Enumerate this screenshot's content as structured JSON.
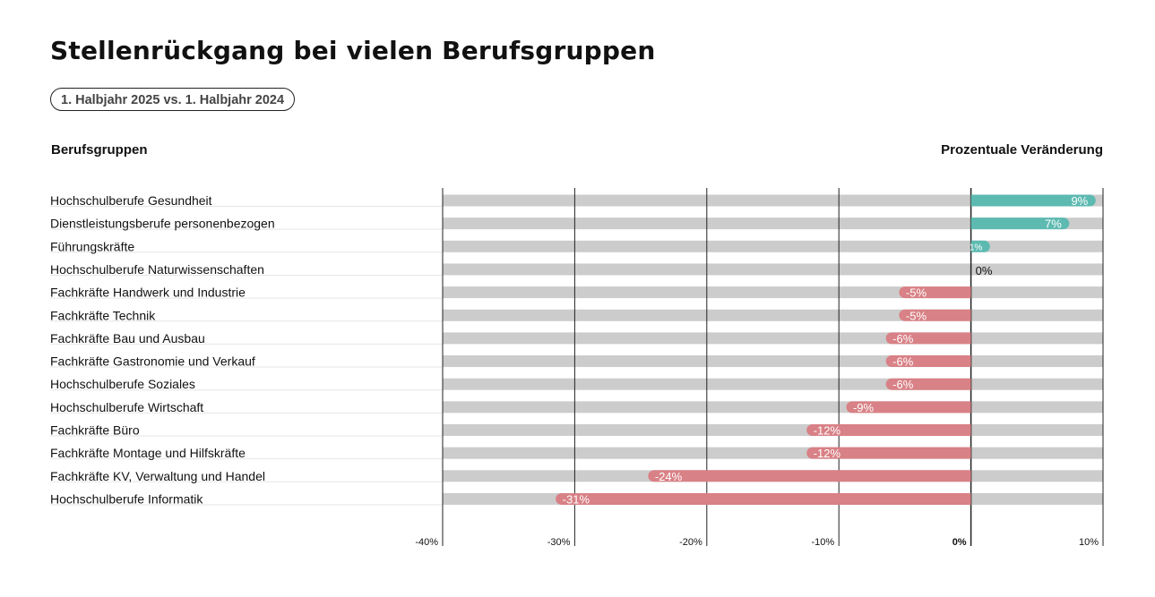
{
  "title": "Stellenrückgang bei vielen Berufsgruppen",
  "period_pill": "1. Halbjahr 2025 vs. 1. Halbjahr 2024",
  "header_left": "Berufsgruppen",
  "header_right": "Prozentuale Veränderung",
  "colors": {
    "positive": "#5dbab1",
    "negative": "#d88186",
    "track": "#cccccc",
    "gridline": "#222222",
    "label_on_bar": "#ffffff",
    "label_zero": "#111111"
  },
  "chart_data": {
    "type": "bar",
    "orientation": "horizontal",
    "categories": [
      "Hochschulberufe Gesundheit",
      "Dienstleistungsberufe personenbezogen",
      "Führungskräfte",
      "Hochschulberufe Naturwissenschaften",
      "Fachkräfte Handwerk und Industrie",
      "Fachkräfte Technik",
      "Fachkräfte Bau und Ausbau",
      "Fachkräfte Gastronomie und Verkauf",
      "Hochschulberufe Soziales",
      "Hochschulberufe Wirtschaft",
      "Fachkräfte Büro",
      "Fachkräfte Montage und Hilfskräfte",
      "Fachkräfte KV, Verwaltung und Handel",
      "Hochschulberufe Informatik"
    ],
    "values": [
      9,
      7,
      1,
      0,
      -5,
      -5,
      -6,
      -6,
      -6,
      -9,
      -12,
      -12,
      -24,
      -31
    ],
    "value_labels": [
      "9%",
      "7%",
      "1%",
      "0%",
      "-5%",
      "-5%",
      "-6%",
      "-6%",
      "-6%",
      "-9%",
      "-12%",
      "-12%",
      "-24%",
      "-31%"
    ],
    "xlim": [
      -40,
      10
    ],
    "x_ticks": [
      -40,
      -30,
      -20,
      -10,
      0,
      10
    ],
    "x_tick_labels": [
      "-40%",
      "-30%",
      "-20%",
      "-10%",
      "0%",
      "10%"
    ],
    "grid": true
  }
}
